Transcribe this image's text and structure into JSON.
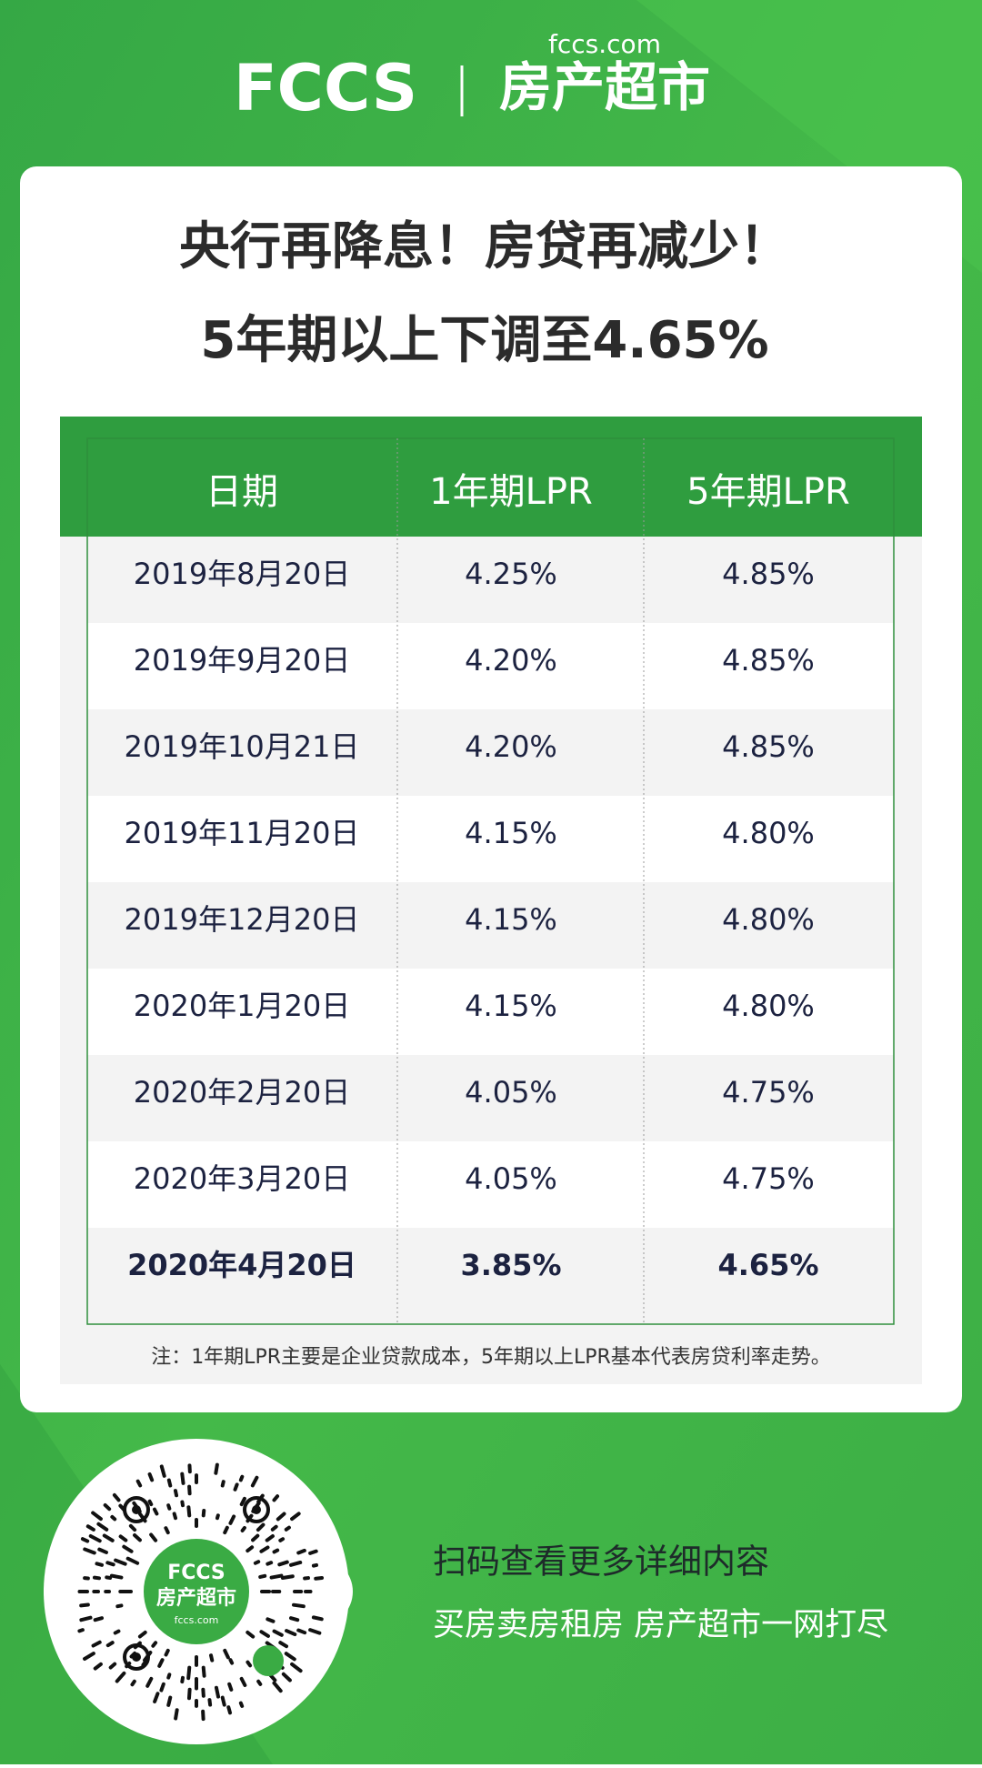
{
  "header": {
    "logo_mark": "FCCS",
    "site": "fccs.com",
    "brand": "房产超市"
  },
  "title": {
    "line1": "央行再降息！房贷再减少！",
    "line2": "5年期以上下调至4.65%"
  },
  "table": {
    "columns": [
      "日期",
      "1年期LPR",
      "5年期LPR"
    ],
    "rows": [
      [
        "2019年8月20日",
        "4.25%",
        "4.85%"
      ],
      [
        "2019年9月20日",
        "4.20%",
        "4.85%"
      ],
      [
        "2019年10月21日",
        "4.20%",
        "4.85%"
      ],
      [
        "2019年11月20日",
        "4.15%",
        "4.80%"
      ],
      [
        "2019年12月20日",
        "4.15%",
        "4.80%"
      ],
      [
        "2020年1月20日",
        "4.15%",
        "4.80%"
      ],
      [
        "2020年2月20日",
        "4.05%",
        "4.75%"
      ],
      [
        "2020年3月20日",
        "4.05%",
        "4.75%"
      ],
      [
        "2020年4月20日",
        "3.85%",
        "4.65%"
      ]
    ],
    "note": "注：1年期LPR主要是企业贷款成本，5年期以上LPR基本代表房贷利率走势。"
  },
  "footer": {
    "qr_brand": "房产超市",
    "qr_site": "fccs.com",
    "qr_mark": "FCCS",
    "line1": "扫码查看更多详细内容",
    "line2": "买房卖房租房 房产超市一网打尽"
  }
}
